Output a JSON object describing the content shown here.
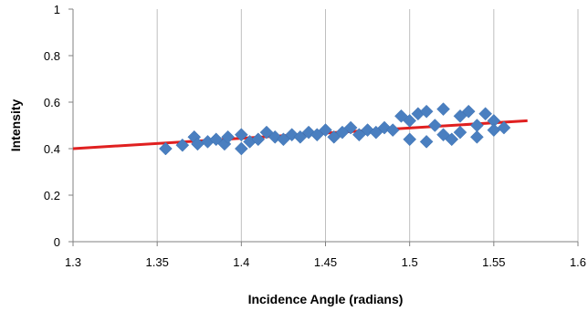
{
  "chart_data": {
    "type": "scatter",
    "xlabel": "Incidence Angle (radians)",
    "ylabel": "Intensity",
    "xlim": [
      1.3,
      1.6
    ],
    "ylim": [
      0,
      1
    ],
    "x_ticks": [
      "1.3",
      "1.35",
      "1.4",
      "1.45",
      "1.5",
      "1.55",
      "1.6"
    ],
    "y_ticks": [
      "0",
      "0.2",
      "0.4",
      "0.6",
      "0.8",
      "1"
    ],
    "grid": "vertical",
    "series": [
      {
        "marker": "diamond",
        "color": "#4a7fc0",
        "points": [
          [
            1.355,
            0.4
          ],
          [
            1.365,
            0.415
          ],
          [
            1.372,
            0.45
          ],
          [
            1.374,
            0.42
          ],
          [
            1.38,
            0.43
          ],
          [
            1.385,
            0.44
          ],
          [
            1.39,
            0.42
          ],
          [
            1.392,
            0.45
          ],
          [
            1.4,
            0.4
          ],
          [
            1.4,
            0.46
          ],
          [
            1.405,
            0.43
          ],
          [
            1.41,
            0.44
          ],
          [
            1.415,
            0.47
          ],
          [
            1.42,
            0.45
          ],
          [
            1.425,
            0.44
          ],
          [
            1.43,
            0.46
          ],
          [
            1.435,
            0.45
          ],
          [
            1.44,
            0.47
          ],
          [
            1.445,
            0.46
          ],
          [
            1.45,
            0.48
          ],
          [
            1.455,
            0.45
          ],
          [
            1.46,
            0.47
          ],
          [
            1.465,
            0.49
          ],
          [
            1.47,
            0.46
          ],
          [
            1.475,
            0.48
          ],
          [
            1.48,
            0.47
          ],
          [
            1.485,
            0.49
          ],
          [
            1.49,
            0.48
          ],
          [
            1.495,
            0.54
          ],
          [
            1.5,
            0.52
          ],
          [
            1.5,
            0.44
          ],
          [
            1.505,
            0.55
          ],
          [
            1.51,
            0.43
          ],
          [
            1.51,
            0.56
          ],
          [
            1.515,
            0.5
          ],
          [
            1.52,
            0.46
          ],
          [
            1.52,
            0.57
          ],
          [
            1.525,
            0.44
          ],
          [
            1.53,
            0.54
          ],
          [
            1.53,
            0.47
          ],
          [
            1.535,
            0.56
          ],
          [
            1.54,
            0.5
          ],
          [
            1.54,
            0.45
          ],
          [
            1.545,
            0.55
          ],
          [
            1.55,
            0.52
          ],
          [
            1.55,
            0.48
          ],
          [
            1.556,
            0.49
          ]
        ]
      },
      {
        "type": "line",
        "color": "#e02020",
        "points": [
          [
            1.3,
            0.4
          ],
          [
            1.57,
            0.52
          ]
        ]
      }
    ]
  }
}
